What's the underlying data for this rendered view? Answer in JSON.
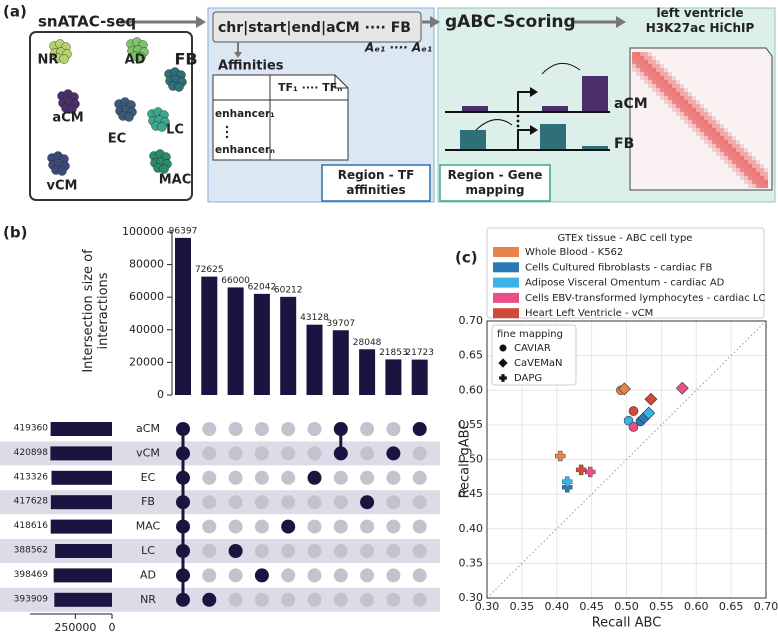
{
  "diagram": {
    "panel_label": "(a)",
    "input": "snATAC-seq",
    "cell_types": [
      "NR",
      "AD",
      "FB",
      "aCM",
      "EC",
      "LC",
      "vCM",
      "MAC"
    ],
    "region_header": "chr|start|end|aCM ···· FB",
    "region_values": "Aₑ₁ ···· Aₑ₁",
    "affinities_title": "Affinities",
    "affinities_columns": "TF₁ ···· TFₙ",
    "affinities_rows": [
      "enhancer₁",
      "enhancerₙ"
    ],
    "tf_box": "Region - TF affinities",
    "scoring_title": "gABC-Scoring",
    "hichip_title": "left ventricle H3K27ac HiChIP",
    "tracks": [
      "aCM",
      "FB"
    ],
    "gene_box": "Region - Gene mapping"
  },
  "chart_data": [
    {
      "type": "upset",
      "panel_label": "(b)",
      "ylabel": "Intersection size of interactions",
      "values": [
        96397,
        72625,
        66000,
        62042,
        60212,
        43128,
        39707,
        28048,
        21853,
        21723
      ],
      "ylim": [
        0,
        100000
      ],
      "yticks": [
        0,
        20000,
        40000,
        60000,
        80000,
        100000
      ],
      "sets": [
        "aCM",
        "vCM",
        "EC",
        "FB",
        "MAC",
        "LC",
        "AD",
        "NR"
      ],
      "set_sizes": [
        419360,
        420898,
        413326,
        417628,
        418616,
        388562,
        398469,
        393909
      ],
      "set_xlim": [
        560000,
        0
      ],
      "set_xticks": [
        250000,
        0
      ],
      "membership": [
        [
          true,
          true,
          true,
          true,
          true,
          true,
          true,
          true
        ],
        [
          false,
          false,
          false,
          false,
          false,
          false,
          false,
          true
        ],
        [
          false,
          false,
          false,
          false,
          false,
          true,
          false,
          false
        ],
        [
          false,
          false,
          false,
          false,
          false,
          false,
          true,
          false
        ],
        [
          false,
          false,
          false,
          false,
          true,
          false,
          false,
          false
        ],
        [
          false,
          false,
          true,
          false,
          false,
          false,
          false,
          false
        ],
        [
          true,
          true,
          false,
          false,
          false,
          false,
          false,
          false
        ],
        [
          false,
          false,
          false,
          true,
          false,
          false,
          false,
          false
        ],
        [
          false,
          true,
          false,
          false,
          false,
          false,
          false,
          false
        ],
        [
          true,
          false,
          false,
          false,
          false,
          false,
          false,
          false
        ]
      ],
      "color": "#1b1340",
      "dot_off_color": "#c3c3cf",
      "stripe_color": "#dcdce8"
    },
    {
      "type": "scatter",
      "panel_label": "(c)",
      "xlabel": "Recall ABC",
      "ylabel": "Recall gABC",
      "xlim": [
        0.3,
        0.7
      ],
      "ylim": [
        0.3,
        0.7
      ],
      "xticks": [
        {
          "value": 0.3,
          "label": "0.30"
        },
        {
          "value": 0.35,
          "label": "0.35"
        },
        {
          "value": 0.4,
          "label": "0.40"
        },
        {
          "value": 0.45,
          "label": "0.45"
        },
        {
          "value": 0.5,
          "label": "0.50"
        },
        {
          "value": 0.55,
          "label": "0.55"
        },
        {
          "value": 0.6,
          "label": "0.60"
        },
        {
          "value": 0.65,
          "label": "0.65"
        },
        {
          "value": 0.7,
          "label": "0.70"
        }
      ],
      "yticks": [
        {
          "value": 0.3,
          "label": "0.30"
        },
        {
          "value": 0.35,
          "label": "0.35"
        },
        {
          "value": 0.4,
          "label": "0.40"
        },
        {
          "value": 0.45,
          "label": "0.45"
        },
        {
          "value": 0.5,
          "label": "0.50"
        },
        {
          "value": 0.55,
          "label": "0.55"
        },
        {
          "value": 0.6,
          "label": "0.60"
        },
        {
          "value": 0.65,
          "label": "0.65"
        },
        {
          "value": 0.7,
          "label": "0.70"
        }
      ],
      "grid": true,
      "diagonal": true,
      "legend_title": "GTEx tissue - ABC cell type",
      "marker_legend_title": "fine mapping",
      "markers": [
        {
          "name": "CAVIAR",
          "shape": "circle"
        },
        {
          "name": "CaVEMaN",
          "shape": "diamond"
        },
        {
          "name": "DAPG",
          "shape": "plus"
        }
      ],
      "series": [
        {
          "name": "Whole Blood - K562",
          "color": "#e8834a",
          "x": [
            0.492,
            0.497,
            0.405
          ],
          "y": [
            0.6,
            0.602,
            0.505
          ]
        },
        {
          "name": "Cells Cultured fibroblasts - cardiac FB",
          "color": "#2a7ab8",
          "x": [
            0.52,
            0.525,
            0.415
          ],
          "y": [
            0.555,
            0.56,
            0.46
          ]
        },
        {
          "name": "Adipose Visceral Omentum - cardiac AD",
          "color": "#3ab4e8",
          "x": [
            0.503,
            0.532,
            0.415
          ],
          "y": [
            0.556,
            0.567,
            0.468
          ]
        },
        {
          "name": "Cells EBV-transformed lymphocytes - cardiac LC",
          "color": "#e8508a",
          "x": [
            0.51,
            0.58,
            0.448
          ],
          "y": [
            0.547,
            0.603,
            0.482
          ]
        },
        {
          "name": "Heart Left Ventricle - vCM",
          "color": "#d04a38",
          "x": [
            0.51,
            0.535,
            0.435
          ],
          "y": [
            0.57,
            0.587,
            0.485
          ]
        }
      ]
    }
  ]
}
